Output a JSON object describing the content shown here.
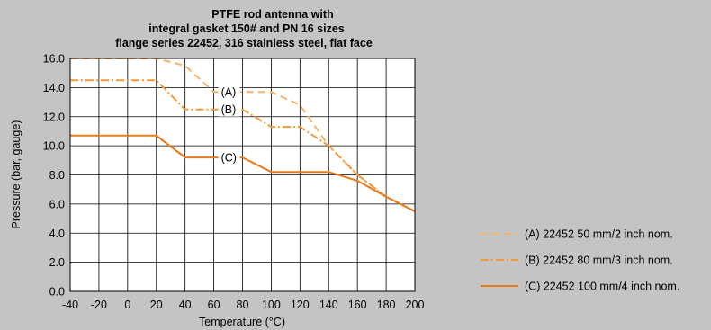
{
  "chart_data": {
    "type": "line",
    "title_lines": [
      "PTFE rod antenna with",
      "integral gasket 150# and PN 16 sizes",
      "flange series 22452, 316 stainless steel, flat face"
    ],
    "xlabel": "Temperature (°C)",
    "ylabel": "Pressure (bar, gauge)",
    "xlim": [
      -40,
      200
    ],
    "ylim": [
      0,
      16
    ],
    "xticks": [
      -40,
      -20,
      0,
      20,
      40,
      60,
      80,
      100,
      120,
      140,
      160,
      180,
      200
    ],
    "xtick_labels": [
      "-40",
      "-20",
      "0",
      "20",
      "40",
      "60",
      "80",
      "100",
      "120",
      "140",
      "160",
      "180",
      "200"
    ],
    "yticks": [
      0,
      2,
      4,
      6,
      8,
      10,
      12,
      14,
      16
    ],
    "ytick_labels": [
      "0.0",
      "2.0",
      "4.0",
      "6.0",
      "8.0",
      "10.0",
      "12.0",
      "14.0",
      "16.0"
    ],
    "grid": true,
    "legend_position": "bottom-right, outside plot",
    "series": [
      {
        "name": "(A) 22452 50 mm/2 inch nom.",
        "tag": "(A)",
        "tag_at": [
          60,
          13.7
        ],
        "color": "#f7b36a",
        "dash": "8,5",
        "x": [
          -40,
          20,
          40,
          60,
          100,
          120,
          140,
          160,
          180,
          200
        ],
        "y": [
          16.0,
          16.0,
          15.5,
          13.7,
          13.7,
          12.8,
          10.0,
          8.0,
          6.5,
          5.5
        ]
      },
      {
        "name": "(B) 22452 80 mm/3 inch nom.",
        "tag": "(B)",
        "tag_at": [
          60,
          12.5
        ],
        "color": "#f29a38",
        "dash": "9,3,2,3",
        "x": [
          -40,
          20,
          40,
          80,
          100,
          120,
          140,
          160,
          180,
          200
        ],
        "y": [
          14.5,
          14.5,
          12.5,
          12.5,
          11.3,
          11.3,
          10.0,
          8.0,
          6.5,
          5.5
        ]
      },
      {
        "name": "(C) 22452 100 mm/4 inch nom.",
        "tag": "(C)",
        "tag_at": [
          60,
          9.2
        ],
        "color": "#e87a1c",
        "dash": "",
        "x": [
          -40,
          20,
          40,
          80,
          100,
          140,
          160,
          180,
          200
        ],
        "y": [
          10.7,
          10.7,
          9.2,
          9.2,
          8.2,
          8.2,
          7.6,
          6.5,
          5.5
        ]
      }
    ]
  }
}
